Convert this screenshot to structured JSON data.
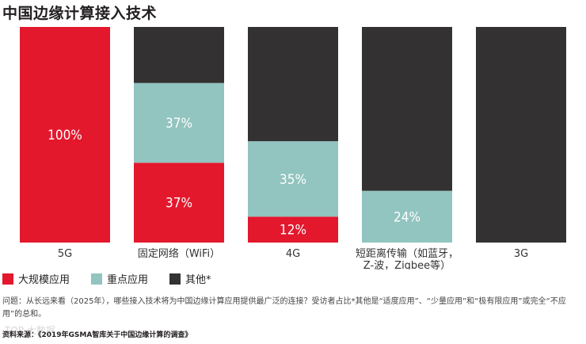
{
  "title": "中国边缘计算接入技术",
  "colors": {
    "large_scale": "#e3182d",
    "key": "#92c4c0",
    "other": "#333132"
  },
  "legend": [
    {
      "label": "大规模应用",
      "color": "#e3182d"
    },
    {
      "label": "重点应用",
      "color": "#92c4c0"
    },
    {
      "label": "其他*",
      "color": "#333132"
    }
  ],
  "chart_data": {
    "type": "bar",
    "stacked": true,
    "categories": [
      "5G",
      "固定网络（WiFi）",
      "4G",
      "短距离传输（如蓝牙，Z-波，Zigbee等）",
      "3G"
    ],
    "category_lines": [
      [
        "5G"
      ],
      [
        "固定网络（WiFi）"
      ],
      [
        "4G"
      ],
      [
        "短距离传输（如蓝牙，",
        "Z-波，Zigbee等）"
      ],
      [
        "3G"
      ]
    ],
    "series": [
      {
        "name": "大规模应用",
        "values": [
          100,
          37,
          12,
          0,
          0
        ],
        "labels": [
          "100%",
          "37%",
          "12%",
          "",
          ""
        ]
      },
      {
        "name": "重点应用",
        "values": [
          0,
          37,
          35,
          24,
          0
        ],
        "labels": [
          "",
          "37%",
          "35%",
          "24%",
          ""
        ]
      },
      {
        "name": "其他*",
        "values": [
          0,
          26,
          53,
          76,
          100
        ],
        "labels": [
          "",
          "",
          "",
          "",
          ""
        ]
      }
    ],
    "ylim": [
      0,
      100
    ]
  },
  "note": "问题：从长远来看（2025年），哪些接入技术将为中国边缘计算应用提供最广泛的连接？受访者占比*其他是“适度应用”、“少量应用”和“极有限应用”或完全“不应用”的总和。",
  "source": "资料来源：《2019年GSMA智库关于中国边缘计算的调查》",
  "watermark": "TOP 大数据"
}
